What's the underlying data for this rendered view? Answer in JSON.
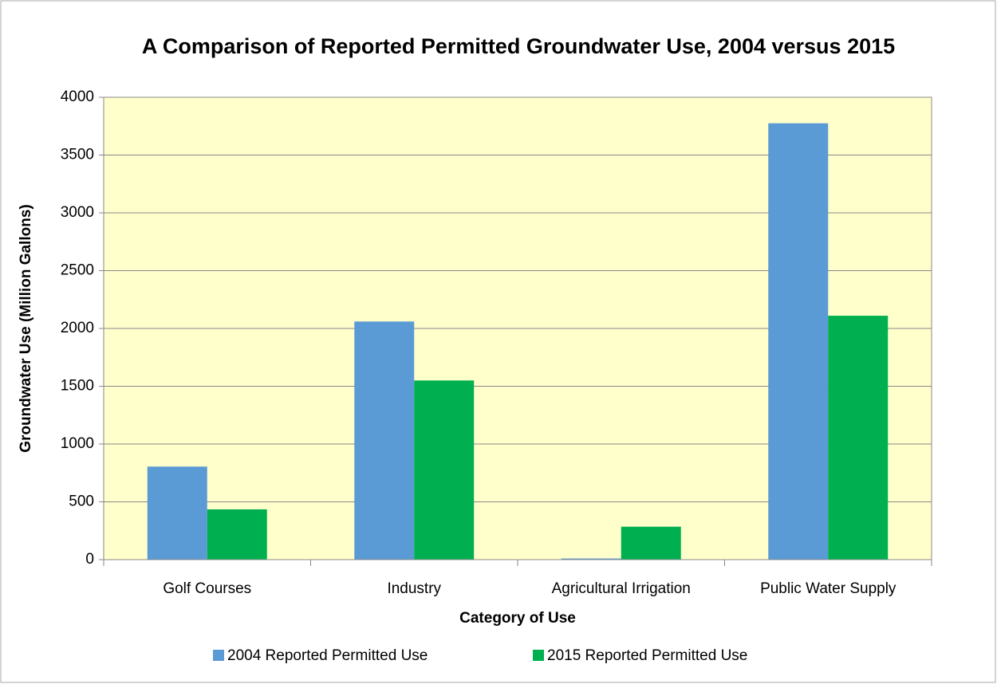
{
  "chart_data": {
    "type": "bar",
    "title": "A Comparison of Reported Permitted Groundwater Use, 2004 versus 2015",
    "x_label": "Category of Use",
    "y_label": "Groundwater Use (Million Gallons)",
    "categories": [
      "Golf Courses",
      "Industry",
      "Agricultural Irrigation",
      "Public Water Supply"
    ],
    "series": [
      {
        "name": "2004 Reported Permitted Use",
        "color": "#5b9bd5",
        "values": [
          805,
          2060,
          10,
          3775
        ]
      },
      {
        "name": "2015 Reported Permitted Use",
        "color": "#00b050",
        "values": [
          435,
          1550,
          285,
          2110
        ]
      }
    ],
    "ylim": [
      0,
      4000
    ],
    "yticks": [
      0,
      500,
      1000,
      1500,
      2000,
      2500,
      3000,
      3500,
      4000
    ],
    "grid": true,
    "legend": "bottom",
    "plot_background": "#ffffcc"
  }
}
